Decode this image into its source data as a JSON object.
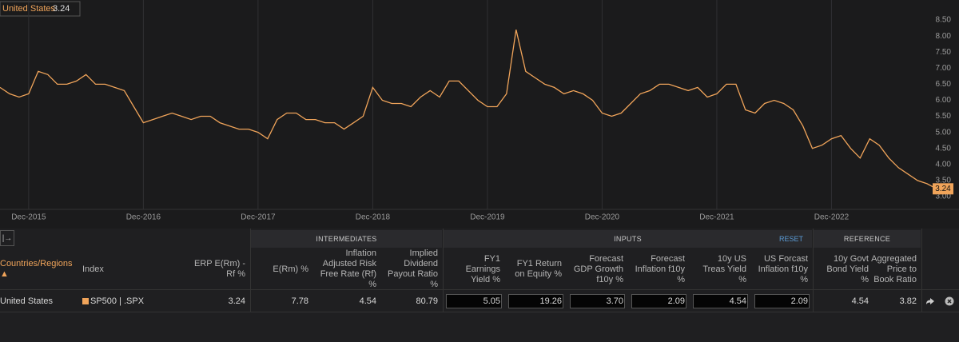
{
  "chart_data": {
    "type": "line",
    "categories": [
      null,
      null,
      null,
      "Dec-2015",
      null,
      null,
      null,
      null,
      null,
      null,
      null,
      null,
      null,
      null,
      null,
      "Dec-2016",
      null,
      null,
      null,
      null,
      null,
      null,
      null,
      null,
      null,
      null,
      null,
      "Dec-2017",
      null,
      null,
      null,
      null,
      null,
      null,
      null,
      null,
      null,
      null,
      null,
      "Dec-2018",
      null,
      null,
      null,
      null,
      null,
      null,
      null,
      null,
      null,
      null,
      null,
      "Dec-2019",
      null,
      null,
      null,
      null,
      null,
      null,
      null,
      null,
      null,
      null,
      null,
      "Dec-2020",
      null,
      null,
      null,
      null,
      null,
      null,
      null,
      null,
      null,
      null,
      null,
      "Dec-2021",
      null,
      null,
      null,
      null,
      null,
      null,
      null,
      null,
      null,
      null,
      null,
      "Dec-2022",
      null,
      null,
      null,
      null,
      null,
      null,
      null,
      null,
      null,
      null,
      null
    ],
    "series": [
      {
        "name": "United States",
        "color": "#f0a45a",
        "values": [
          6.4,
          6.2,
          6.1,
          6.2,
          6.9,
          6.8,
          6.5,
          6.5,
          6.6,
          6.8,
          6.5,
          6.5,
          6.4,
          6.3,
          5.8,
          5.3,
          5.4,
          5.5,
          5.6,
          5.5,
          5.4,
          5.5,
          5.5,
          5.3,
          5.2,
          5.1,
          5.1,
          5.0,
          4.8,
          5.4,
          5.6,
          5.6,
          5.4,
          5.4,
          5.3,
          5.3,
          5.1,
          5.3,
          5.5,
          6.4,
          6.0,
          5.9,
          5.9,
          5.8,
          6.1,
          6.3,
          6.1,
          6.6,
          6.6,
          6.3,
          6.0,
          5.8,
          5.8,
          6.2,
          8.2,
          6.9,
          6.7,
          6.5,
          6.4,
          6.2,
          6.3,
          6.2,
          6.0,
          5.6,
          5.5,
          5.6,
          5.9,
          6.2,
          6.3,
          6.5,
          6.5,
          6.4,
          6.3,
          6.4,
          6.1,
          6.2,
          6.5,
          6.5,
          5.7,
          5.6,
          5.9,
          6.0,
          5.9,
          5.7,
          5.2,
          4.5,
          4.6,
          4.8,
          4.9,
          4.5,
          4.2,
          4.8,
          4.6,
          4.2,
          3.9,
          3.7,
          3.5,
          3.4,
          3.24
        ]
      }
    ],
    "ylim": [
      2.6,
      9.0
    ],
    "yticks": [
      {
        "value": 3,
        "label": "3.00"
      },
      {
        "value": 3.5,
        "label": "3.50"
      },
      {
        "value": 4,
        "label": "4.00"
      },
      {
        "value": 4.5,
        "label": "4.50"
      },
      {
        "value": 5,
        "label": "5.00"
      },
      {
        "value": 5.5,
        "label": "5.50"
      },
      {
        "value": 6,
        "label": "6.00"
      },
      {
        "value": 6.5,
        "label": "6.50"
      },
      {
        "value": 7,
        "label": "7.00"
      },
      {
        "value": 7.5,
        "label": "7.50"
      },
      {
        "value": 8,
        "label": "8.00"
      },
      {
        "value": 8.5,
        "label": "8.50"
      }
    ],
    "grid": true
  },
  "table": {
    "group_headers": [
      "INTERMEDIATES",
      "INPUTS",
      "REFERENCE"
    ],
    "reset": "RESET",
    "columns": [
      "Countries/Regions ▲",
      "Index",
      "ERP E(Rm) - Rf %",
      "E(Rm) %",
      "Inflation Adjusted Risk Free Rate (Rf) %",
      "Implied Dividend Payout Ratio %",
      "FY1 Earnings Yield %",
      "FY1 Return on Equity %",
      "Forecast GDP Growth f10y %",
      "Forecast Inflation f10y %",
      "10y US Treas Yield %",
      "US Forcast Inflation f10y %",
      "10y Govt Bond Yield %",
      "Aggregated Price to Book Ratio"
    ],
    "rows": [
      [
        "United States",
        "SP500 | .SPX",
        "3.24",
        "7.78",
        "4.54",
        "80.79",
        "5.05",
        "19.26",
        "3.70",
        "2.09",
        "4.54",
        "2.09",
        "4.54",
        "3.82"
      ]
    ]
  }
}
